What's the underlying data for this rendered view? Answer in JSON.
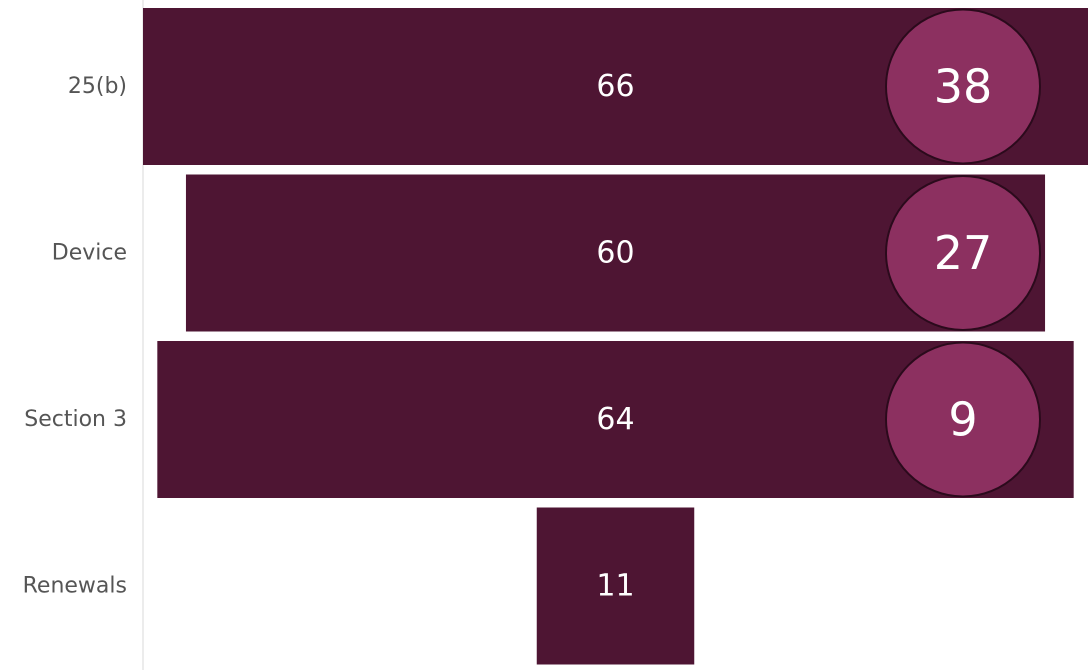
{
  "chart_data": {
    "type": "bar",
    "categories": [
      "25(b)",
      "Device",
      "Section 3",
      "Renewals"
    ],
    "series": [
      {
        "values": [
          66,
          60,
          64,
          11
        ]
      },
      {
        "values": [
          38,
          27,
          9,
          null
        ]
      }
    ],
    "bar_color": "#4e1533",
    "bubble_color": "#8c3060",
    "bubble_border_color": "#2b0a1c",
    "label_color": "#ffffff",
    "category_label_color": "#555555"
  }
}
